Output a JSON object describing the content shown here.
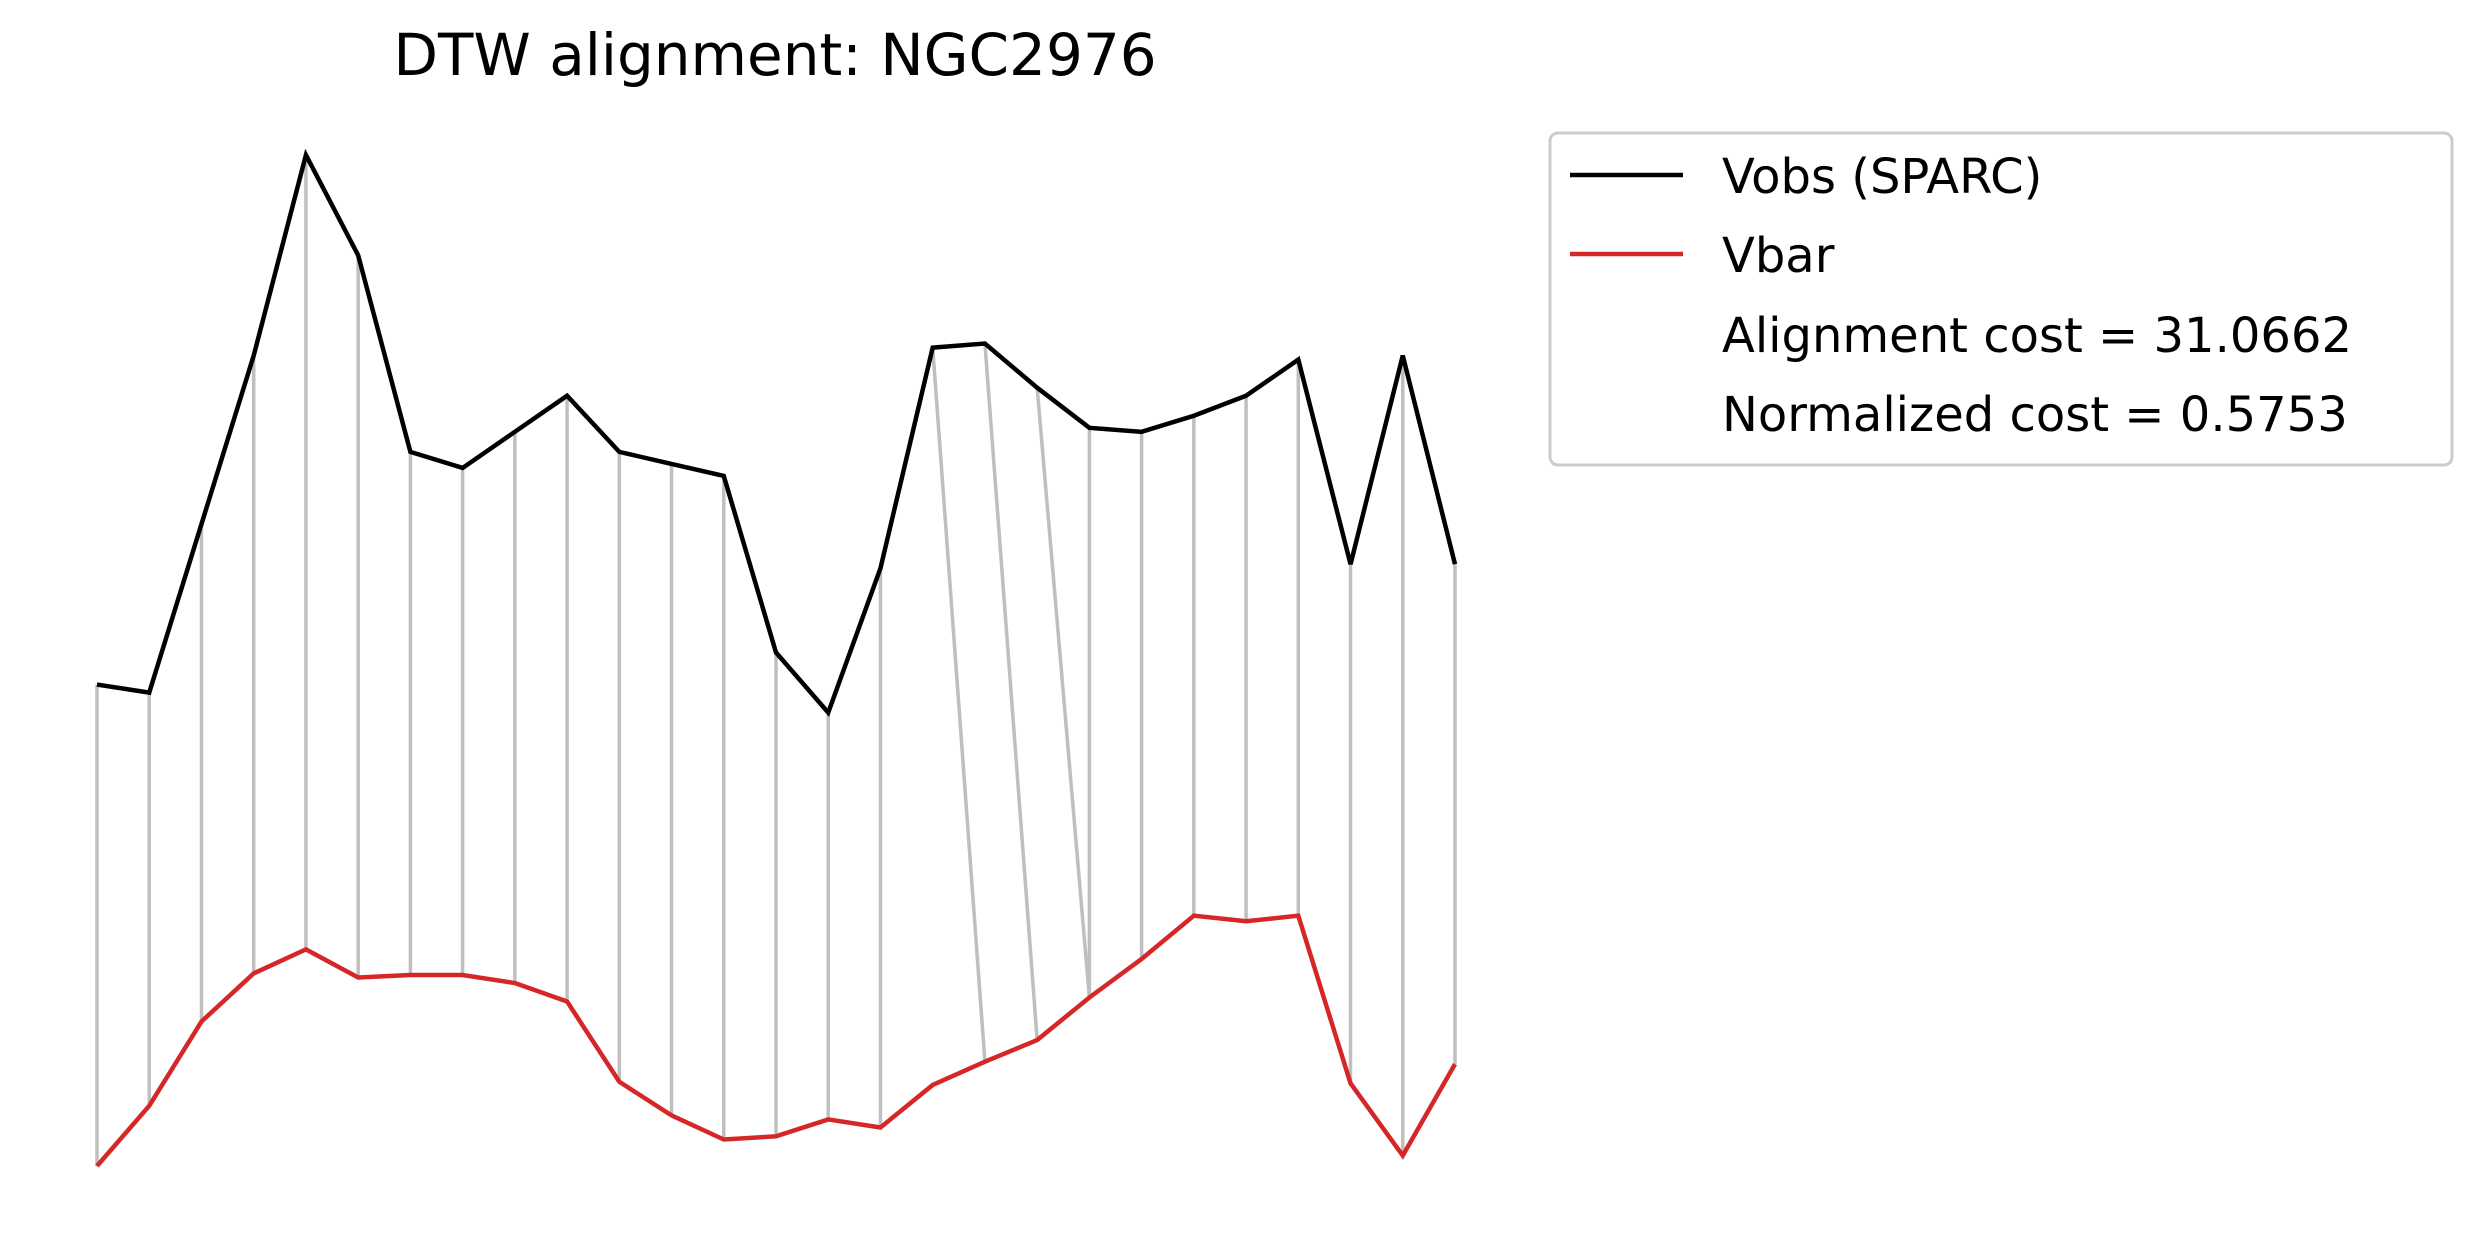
{
  "chart_data": {
    "type": "line",
    "title": "DTW alignment: NGC2976",
    "xlabel": "",
    "ylabel": "",
    "axes_visible": false,
    "grid": false,
    "legend_placement": "upper right, outside plot",
    "x": [
      0,
      1,
      2,
      3,
      4,
      5,
      6,
      7,
      8,
      9,
      10,
      11,
      12,
      13,
      14,
      15,
      16,
      17,
      18,
      19,
      20,
      21,
      22,
      23,
      24,
      25,
      26
    ],
    "series": [
      {
        "name": "Vobs (SPARC)",
        "color": "#000000",
        "values": [
          0.6,
          0.59,
          0.8,
          1.01,
          1.26,
          1.135,
          0.89,
          0.87,
          0.915,
          0.96,
          0.89,
          0.875,
          0.86,
          0.64,
          0.565,
          0.745,
          1.02,
          1.025,
          0.97,
          0.92,
          0.915,
          0.935,
          0.96,
          1.005,
          0.75,
          1.01,
          0.75
        ]
      },
      {
        "name": "Vbar",
        "color": "#d62728",
        "values": [
          0.0,
          0.075,
          0.18,
          0.24,
          0.27,
          0.235,
          0.238,
          0.238,
          0.228,
          0.205,
          0.105,
          0.063,
          0.033,
          0.037,
          0.058,
          0.048,
          0.101,
          0.13,
          0.157,
          0.21,
          0.258,
          0.312,
          0.305,
          0.312,
          0.103,
          0.013,
          0.127
        ]
      }
    ],
    "alignment": {
      "color": "#bfbfbf",
      "pairs": [
        [
          0,
          0
        ],
        [
          1,
          1
        ],
        [
          2,
          2
        ],
        [
          3,
          3
        ],
        [
          4,
          4
        ],
        [
          5,
          5
        ],
        [
          6,
          6
        ],
        [
          7,
          7
        ],
        [
          8,
          8
        ],
        [
          9,
          9
        ],
        [
          10,
          10
        ],
        [
          11,
          11
        ],
        [
          12,
          12
        ],
        [
          13,
          13
        ],
        [
          14,
          14
        ],
        [
          15,
          15
        ],
        [
          16,
          17
        ],
        [
          17,
          18
        ],
        [
          18,
          19
        ],
        [
          19,
          19
        ],
        [
          20,
          20
        ],
        [
          21,
          21
        ],
        [
          22,
          22
        ],
        [
          23,
          23
        ],
        [
          24,
          24
        ],
        [
          25,
          25
        ],
        [
          26,
          26
        ]
      ]
    },
    "legend": {
      "entries": [
        {
          "label": "Vobs (SPARC)",
          "color": "#000000"
        },
        {
          "label": "Vbar",
          "color": "#d62728"
        }
      ],
      "cost_text": "Alignment cost = 31.0662",
      "normalized_text": "Normalized cost = 0.5753"
    }
  }
}
